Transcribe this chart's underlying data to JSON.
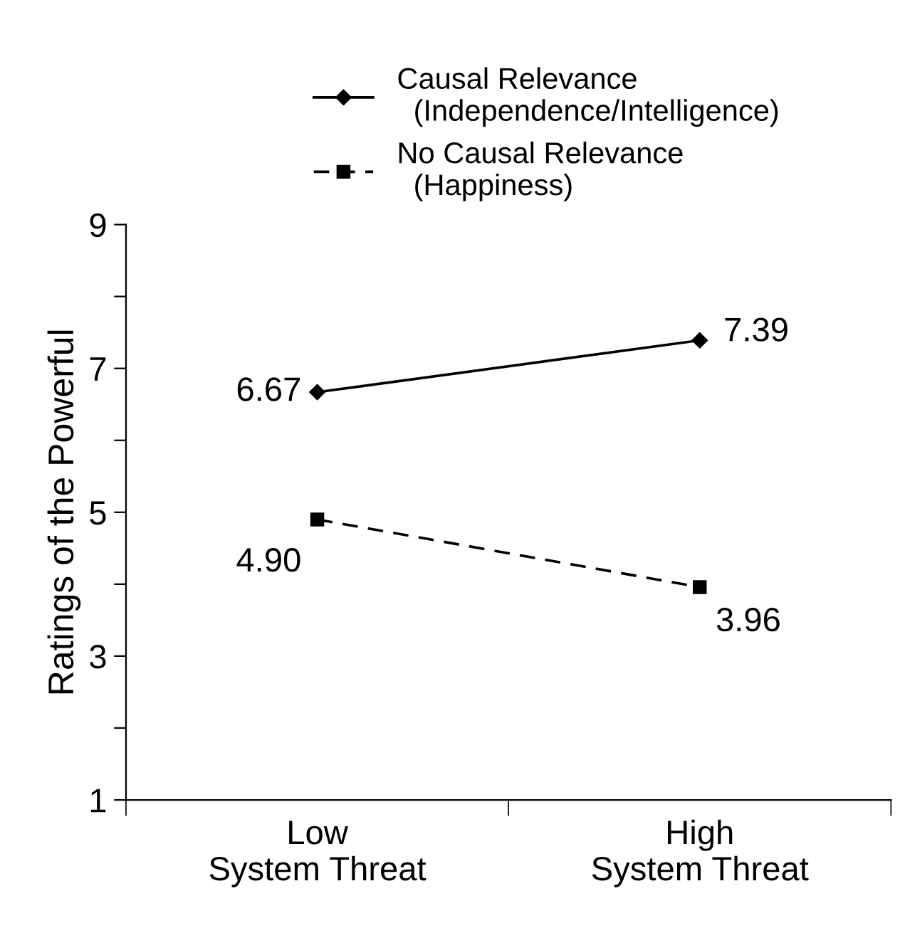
{
  "chart_data": {
    "type": "line",
    "ylabel": "Ratings of the Powerful",
    "categories": [
      "Low\nSystem Threat",
      "High\nSystem Threat"
    ],
    "series": [
      {
        "name": "Causal Relevance\n  (Independence/Intelligence)",
        "color": "#000000",
        "values": [
          6.67,
          7.39
        ],
        "value_labels": [
          "6.67",
          "7.39"
        ],
        "marker": "diamond",
        "line_style": "solid"
      },
      {
        "name": "No Causal Relevance\n  (Happiness)",
        "color": "#000000",
        "values": [
          4.9,
          3.96
        ],
        "value_labels": [
          "4.90",
          "3.96"
        ],
        "marker": "square",
        "line_style": "dashed"
      }
    ],
    "ylim": [
      1,
      9
    ],
    "yticks": [
      1,
      {
        "value": 2,
        "label": null
      },
      3,
      {
        "value": 4,
        "label": null
      },
      5,
      {
        "value": 6,
        "label": null
      },
      7,
      {
        "value": 8,
        "label": null
      },
      9
    ],
    "legend": "top",
    "grid": false
  }
}
